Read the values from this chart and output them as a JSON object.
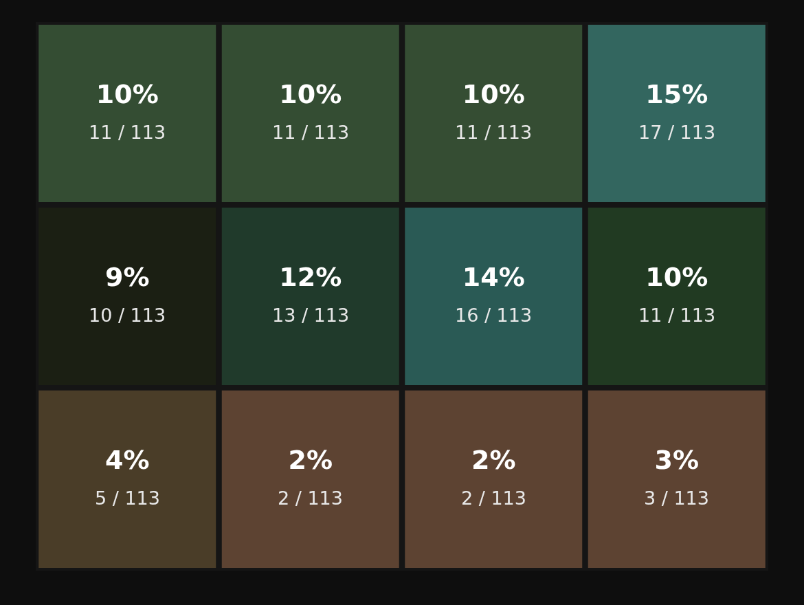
{
  "chart_data": {
    "type": "heatmap",
    "categories": [
      null,
      null,
      null,
      null
    ],
    "y_categories": [
      null,
      null,
      null
    ],
    "cells": [
      [
        10,
        10,
        10,
        15
      ],
      [
        9,
        12,
        14,
        10
      ],
      [
        4,
        2,
        2,
        3
      ]
    ],
    "cell_labels": [
      [
        "10%",
        "10%",
        "10%",
        "15%"
      ],
      [
        "9%",
        "12%",
        "14%",
        "10%"
      ],
      [
        "4%",
        "2%",
        "2%",
        "3%"
      ]
    ],
    "annotations": [
      "11 / 113",
      "11 / 113",
      "11 / 113",
      "17 / 113",
      "10 / 113",
      "13 / 113",
      "16 / 113",
      "11 / 113",
      "5 / 113",
      "2 / 113",
      "2 / 113",
      "3 / 113"
    ],
    "colors": [
      [
        "#344d33",
        "#344d33",
        "#354d33",
        "#33665f"
      ],
      [
        "#1b1f13",
        "#203a2b",
        "#2a5a55",
        "#213a22"
      ],
      [
        "#4a3d28",
        "#5d4332",
        "#5d4332",
        "#5d4332"
      ]
    ]
  }
}
